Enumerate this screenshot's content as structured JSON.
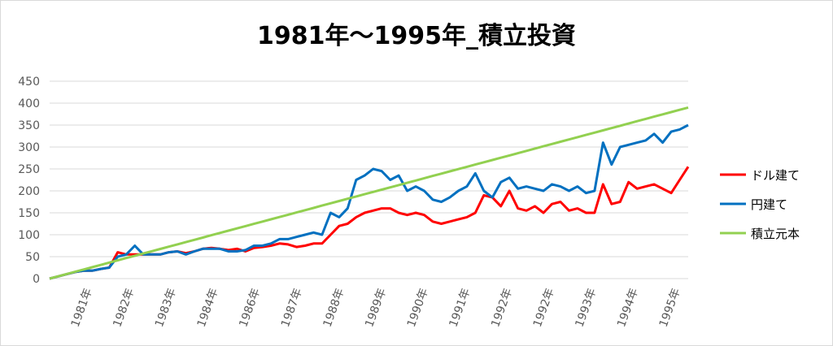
{
  "chart_data": {
    "type": "line",
    "title": "1981年～1995年_積立投資",
    "xlabel": "",
    "ylabel": "",
    "ylim": [
      0,
      450
    ],
    "yticks": [
      0,
      50,
      100,
      150,
      200,
      250,
      300,
      350,
      400,
      450
    ],
    "grid": true,
    "legend_position": "right",
    "categories": [
      "1981年",
      "1982年",
      "1983年",
      "1984年",
      "1986年",
      "1987年",
      "1988年",
      "1989年",
      "1990年",
      "1991年",
      "1992年",
      "1992年",
      "1993年",
      "1994年",
      "1995年"
    ],
    "x": [
      0,
      0.4,
      0.8,
      1.2,
      1.6,
      2.0,
      2.4,
      2.8,
      3.2,
      3.6,
      4.0,
      4.4,
      4.8,
      5.2,
      5.6,
      6.0,
      6.4,
      6.8,
      7.2,
      7.6,
      8.0,
      8.4,
      8.8,
      9.2,
      9.6,
      10.0,
      10.4,
      10.8,
      11.2,
      11.6,
      12.0,
      12.4,
      12.8,
      13.2,
      13.6,
      14.0,
      14.4,
      14.8,
      15.2,
      15.6,
      16.0,
      16.4,
      16.8,
      17.2,
      17.6,
      18.0,
      18.4,
      18.8,
      19.2,
      19.6,
      20.0,
      20.4,
      20.8,
      21.2,
      21.6,
      22.0,
      22.4,
      22.8,
      23.2,
      23.6,
      24.0,
      24.4,
      24.8,
      25.2,
      25.6,
      26.0,
      26.4,
      26.8,
      27.2,
      27.6,
      28.0,
      28.4,
      28.8,
      29.2,
      29.6,
      30.0
    ],
    "series": [
      {
        "name": "ドル建て",
        "color": "#ff0000",
        "values": [
          0,
          5,
          10,
          15,
          18,
          18,
          22,
          25,
          60,
          55,
          55,
          55,
          55,
          55,
          60,
          62,
          58,
          62,
          68,
          70,
          68,
          65,
          68,
          62,
          70,
          72,
          75,
          80,
          78,
          72,
          75,
          80,
          80,
          100,
          120,
          125,
          140,
          150,
          155,
          160,
          160,
          150,
          145,
          150,
          145,
          130,
          125,
          130,
          135,
          140,
          150,
          190,
          185,
          165,
          200,
          160,
          155,
          165,
          150,
          170,
          175,
          155,
          160,
          150,
          150,
          215,
          170,
          175,
          220,
          205,
          210,
          215,
          205,
          195,
          225,
          255
        ]
      },
      {
        "name": "円建て",
        "color": "#0070c0",
        "values": [
          0,
          5,
          10,
          15,
          18,
          18,
          22,
          25,
          50,
          55,
          75,
          55,
          55,
          55,
          60,
          62,
          55,
          62,
          68,
          68,
          68,
          62,
          62,
          65,
          75,
          75,
          80,
          90,
          90,
          95,
          100,
          105,
          100,
          150,
          140,
          160,
          225,
          235,
          250,
          245,
          225,
          235,
          200,
          210,
          200,
          180,
          175,
          185,
          200,
          210,
          240,
          200,
          185,
          220,
          230,
          205,
          210,
          205,
          200,
          215,
          210,
          200,
          210,
          195,
          200,
          310,
          260,
          300,
          305,
          310,
          315,
          330,
          310,
          335,
          340,
          350
        ]
      },
      {
        "name": "積立元本",
        "color": "#92d050",
        "values": [
          0,
          5.2,
          10.4,
          15.6,
          20.8,
          26,
          31.2,
          36.4,
          41.6,
          46.8,
          52,
          57.2,
          62.4,
          67.6,
          72.8,
          78,
          83.2,
          88.4,
          93.6,
          98.8,
          104,
          109.2,
          114.4,
          119.6,
          124.8,
          130,
          135.2,
          140.4,
          145.6,
          150.8,
          156,
          161.2,
          166.4,
          171.6,
          176.8,
          182,
          187.2,
          192.4,
          197.6,
          202.8,
          208,
          213.2,
          218.4,
          223.6,
          228.8,
          234,
          239.2,
          244.4,
          249.6,
          254.8,
          260,
          265.2,
          270.4,
          275.6,
          280.8,
          286,
          291.2,
          296.4,
          301.6,
          306.8,
          312,
          317.2,
          322.4,
          327.6,
          332.8,
          338,
          343.2,
          348.4,
          353.6,
          358.8,
          364,
          369.2,
          374.4,
          379.6,
          384.8,
          390
        ]
      }
    ]
  }
}
